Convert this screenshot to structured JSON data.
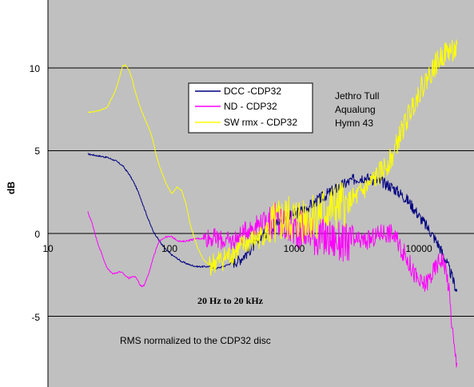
{
  "chart_data": {
    "type": "line",
    "title": "",
    "xlabel": "",
    "ylabel": "dB",
    "x_scale": "log",
    "xlim": [
      10,
      30000
    ],
    "ylim": [
      -9,
      13
    ],
    "x_ticks": [
      "10",
      "100",
      "1000",
      "10000"
    ],
    "y_ticks": [
      "10",
      "5",
      "0",
      "-5"
    ],
    "grid": "horizontal",
    "legend_position": "upper-left-center",
    "annotations": {
      "album": [
        "Jethro Tull",
        "Aqualung",
        "Hymn 43"
      ],
      "range": "20 Hz to 20 kHz",
      "note": "RMS normalized to the CDP32 disc"
    },
    "series": [
      {
        "name": "DCC -CDP32",
        "color": "#000080",
        "x": [
          21,
          25,
          30,
          35,
          40,
          45,
          50,
          55,
          60,
          65,
          70,
          80,
          90,
          100,
          110,
          120,
          140,
          160,
          180,
          200,
          230,
          260,
          300,
          350,
          400,
          450,
          500,
          600,
          700,
          800,
          1000,
          1200,
          1500,
          2000,
          2500,
          3000,
          3500,
          4000,
          5000,
          6000,
          7000,
          8000,
          9000,
          10000,
          12000,
          14000,
          16000,
          18000,
          20000
        ],
        "values": [
          4.8,
          4.7,
          4.6,
          4.4,
          4.1,
          3.6,
          3.0,
          2.3,
          1.5,
          0.8,
          0.2,
          -0.5,
          -1.0,
          -1.3,
          -1.5,
          -1.7,
          -1.9,
          -2.0,
          -2.0,
          -2.0,
          -2.1,
          -2.0,
          -1.8,
          -1.6,
          -1.2,
          -0.8,
          -0.4,
          0.2,
          0.6,
          0.9,
          1.2,
          1.5,
          2.0,
          2.6,
          3.0,
          3.3,
          3.4,
          3.3,
          3.1,
          2.8,
          2.4,
          2.0,
          1.5,
          1.0,
          0.2,
          -0.6,
          -1.5,
          -2.5,
          -3.5
        ]
      },
      {
        "name": "ND - CDP32",
        "color": "#ff00ff",
        "x": [
          21,
          23,
          25,
          28,
          30,
          33,
          35,
          38,
          40,
          43,
          45,
          48,
          50,
          53,
          55,
          58,
          60,
          65,
          70,
          75,
          80,
          90,
          100,
          110,
          120,
          140,
          160,
          180,
          200,
          250,
          300,
          350,
          400,
          500,
          600,
          700,
          800,
          1000,
          1200,
          1500,
          2000,
          2500,
          3000,
          4000,
          5000,
          6000,
          7000,
          8000,
          9000,
          10000,
          11000,
          12000,
          13000,
          14000,
          15000,
          16000,
          17000,
          18000,
          19000,
          20000
        ],
        "values": [
          1.3,
          0.5,
          -0.5,
          -1.5,
          -2.1,
          -2.4,
          -2.4,
          -2.3,
          -2.4,
          -2.6,
          -2.7,
          -2.6,
          -2.6,
          -2.8,
          -3.1,
          -3.2,
          -3.1,
          -2.4,
          -1.6,
          -0.9,
          -0.4,
          -0.2,
          -0.2,
          -0.4,
          -0.5,
          -0.4,
          -0.3,
          -0.3,
          -0.2,
          -0.4,
          -0.5,
          -0.2,
          0.2,
          0.6,
          0.8,
          0.7,
          0.5,
          0.3,
          0.2,
          -0.2,
          -0.4,
          -0.6,
          -0.5,
          -0.4,
          0.1,
          0.0,
          -0.8,
          -1.6,
          -2.4,
          -3.0,
          -3.1,
          -2.7,
          -2.3,
          -1.8,
          -1.5,
          -1.9,
          -3.0,
          -5.0,
          -7.0,
          -8.0
        ]
      },
      {
        "name": "SW rmx - CDP32",
        "color": "#ffff00",
        "x": [
          21,
          25,
          30,
          35,
          38,
          40,
          42,
          45,
          48,
          50,
          55,
          60,
          65,
          70,
          75,
          80,
          90,
          100,
          110,
          120,
          130,
          140,
          160,
          180,
          200,
          250,
          300,
          350,
          400,
          500,
          600,
          700,
          800,
          1000,
          1200,
          1500,
          2000,
          2500,
          3000,
          4000,
          5000,
          6000,
          7000,
          8000,
          9000,
          10000,
          12000,
          14000,
          16000,
          18000,
          20000
        ],
        "values": [
          7.3,
          7.4,
          7.6,
          8.6,
          9.5,
          10.1,
          10.2,
          9.9,
          9.3,
          8.7,
          7.7,
          7.0,
          6.4,
          5.7,
          4.7,
          4.0,
          3.0,
          2.4,
          2.8,
          2.6,
          1.8,
          0.6,
          -0.8,
          -1.6,
          -1.9,
          -1.6,
          -1.3,
          -0.9,
          -0.6,
          -0.3,
          0.2,
          0.5,
          0.8,
          0.8,
          1.0,
          1.2,
          1.5,
          1.8,
          2.1,
          3.0,
          3.8,
          4.6,
          6.0,
          7.0,
          7.9,
          8.6,
          9.6,
          10.4,
          10.9,
          11.1,
          11.0
        ]
      }
    ]
  }
}
